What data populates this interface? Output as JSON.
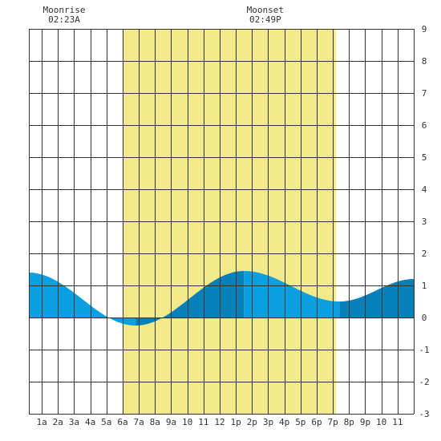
{
  "chart_data": {
    "type": "area",
    "title": "",
    "xlabel": "",
    "ylabel": "",
    "x_range_hours": [
      0.2,
      24.0
    ],
    "ylim": [
      -3,
      9
    ],
    "y_ticks": [
      "9",
      "8",
      "7",
      "6",
      "5",
      "4",
      "3",
      "2",
      "1",
      "0",
      "-1",
      "-2",
      "-3"
    ],
    "x_tick_labels": [
      "1a",
      "2a",
      "3a",
      "4a",
      "5a",
      "6a",
      "7a",
      "8a",
      "9a",
      "10",
      "11",
      "12",
      "1p",
      "2p",
      "3p",
      "4p",
      "5p",
      "6p",
      "7p",
      "8p",
      "9p",
      "10",
      "11"
    ],
    "grid": true,
    "daylight": {
      "start_hour": 6.0,
      "end_hour": 19.2
    },
    "moonrise": {
      "label": "Moonrise",
      "time": "02:23A",
      "hour": 2.38
    },
    "moonset": {
      "label": "Moonset",
      "time": "02:49P",
      "hour": 14.82
    },
    "tide_extremes": [
      {
        "type": "high",
        "time_hour": 0.2,
        "height": 1.4
      },
      {
        "type": "low",
        "time_hour": 6.8,
        "height": -0.25
      },
      {
        "type": "high",
        "time_hour": 13.5,
        "height": 1.45
      },
      {
        "type": "low",
        "time_hour": 19.4,
        "height": 0.5
      },
      {
        "type": "high",
        "time_hour": 24.0,
        "height": 1.2
      }
    ],
    "colors": {
      "daylight": "#f3ea8c",
      "tide_light": "#099fe0",
      "tide_dark": "#0580b9",
      "grid": "#333333",
      "background": "#ffffff"
    }
  }
}
